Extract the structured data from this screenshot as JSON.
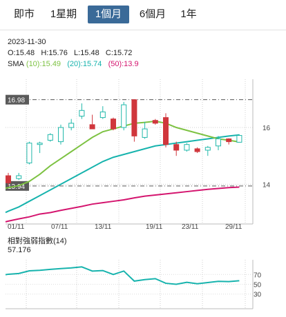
{
  "tabs": [
    {
      "label": "即市"
    },
    {
      "label": "1星期"
    },
    {
      "label": "1個月",
      "active": true
    },
    {
      "label": "6個月"
    },
    {
      "label": "1年"
    }
  ],
  "info": {
    "date": "2023-11-30",
    "open": "O:15.48",
    "high": "H:15.76",
    "low": "L:15.48",
    "close": "C:15.72",
    "sma_label": "SMA",
    "sma10": "(10):15.49",
    "sma20": "(20):15.74",
    "sma50": "(50):13.9"
  },
  "colors": {
    "up": "#20b8aa",
    "down": "#d0363c",
    "sma10": "#7dc242",
    "sma20": "#16b3ad",
    "sma50": "#d4146e",
    "rsi": "#16b3ad",
    "active_tab": "#3a6a98"
  },
  "chart_data": {
    "type": "candlestick",
    "x_labels": [
      "01/11",
      "07/11",
      "13/11",
      "19/11",
      "23/11",
      "29/11"
    ],
    "y_ticks": [
      14,
      16
    ],
    "ylim": [
      12.6,
      17.7
    ],
    "price_markers": {
      "high": "16.98",
      "low": "13.94"
    },
    "candles": [
      {
        "o": 14.3,
        "h": 14.4,
        "l": 13.95,
        "c": 14.05
      },
      {
        "o": 14.2,
        "h": 14.4,
        "l": 14.15,
        "c": 14.3
      },
      {
        "o": 14.75,
        "h": 15.5,
        "l": 14.7,
        "c": 15.45
      },
      {
        "o": 15.4,
        "h": 15.5,
        "l": 15.1,
        "c": 15.45
      },
      {
        "o": 15.55,
        "h": 15.8,
        "l": 15.5,
        "c": 15.75
      },
      {
        "o": 15.5,
        "h": 16.1,
        "l": 15.4,
        "c": 16.0
      },
      {
        "o": 16.0,
        "h": 16.3,
        "l": 15.9,
        "c": 16.15
      },
      {
        "o": 16.4,
        "h": 16.85,
        "l": 16.3,
        "c": 16.6
      },
      {
        "o": 16.1,
        "h": 16.45,
        "l": 16.0,
        "c": 15.95
      },
      {
        "o": 16.35,
        "h": 16.75,
        "l": 16.3,
        "c": 16.55
      },
      {
        "o": 16.3,
        "h": 16.35,
        "l": 15.9,
        "c": 15.95
      },
      {
        "o": 16.0,
        "h": 16.9,
        "l": 15.9,
        "c": 16.8
      },
      {
        "o": 16.98,
        "h": 16.98,
        "l": 15.5,
        "c": 15.7
      },
      {
        "o": 15.65,
        "h": 16.2,
        "l": 15.6,
        "c": 15.95
      },
      {
        "o": 16.25,
        "h": 16.3,
        "l": 16.1,
        "c": 16.15
      },
      {
        "o": 16.35,
        "h": 16.5,
        "l": 15.3,
        "c": 15.4
      },
      {
        "o": 15.4,
        "h": 15.5,
        "l": 15.0,
        "c": 15.2
      },
      {
        "o": 15.2,
        "h": 15.45,
        "l": 15.15,
        "c": 15.4
      },
      {
        "o": 15.25,
        "h": 15.3,
        "l": 15.1,
        "c": 15.15
      },
      {
        "o": 15.2,
        "h": 15.35,
        "l": 15.0,
        "c": 15.3
      },
      {
        "o": 15.35,
        "h": 15.7,
        "l": 15.2,
        "c": 15.6
      },
      {
        "o": 15.6,
        "h": 15.62,
        "l": 15.4,
        "c": 15.5
      },
      {
        "o": 15.48,
        "h": 15.76,
        "l": 15.48,
        "c": 15.72
      }
    ],
    "sma10": [
      13.88,
      13.95,
      14.1,
      14.35,
      14.65,
      14.9,
      15.15,
      15.4,
      15.65,
      15.85,
      15.95,
      16.05,
      16.15,
      16.18,
      16.22,
      16.15,
      16.0,
      15.9,
      15.8,
      15.7,
      15.6,
      15.55,
      15.49
    ],
    "sma20": [
      13.05,
      13.2,
      13.4,
      13.6,
      13.8,
      14.0,
      14.2,
      14.4,
      14.6,
      14.8,
      14.95,
      15.05,
      15.15,
      15.25,
      15.35,
      15.4,
      15.45,
      15.5,
      15.55,
      15.6,
      15.65,
      15.7,
      15.74
    ],
    "sma50": [
      12.7,
      12.78,
      12.85,
      12.95,
      13.0,
      13.08,
      13.15,
      13.22,
      13.3,
      13.35,
      13.4,
      13.45,
      13.52,
      13.58,
      13.62,
      13.66,
      13.7,
      13.74,
      13.78,
      13.82,
      13.85,
      13.88,
      13.9
    ],
    "rsi": {
      "label": "相對強弱指數",
      "period": "(14)",
      "value": "57.176",
      "y_ticks": [
        70,
        50,
        30
      ],
      "ylim": [
        0,
        100
      ],
      "values": [
        70.5,
        72.0,
        77.5,
        78.5,
        80.5,
        82.0,
        83.5,
        85.5,
        77.0,
        78.0,
        70.0,
        77.0,
        56.5,
        59.5,
        61.5,
        52.0,
        50.0,
        54.0,
        51.0,
        53.5,
        56.0,
        55.5,
        57.2
      ]
    }
  }
}
